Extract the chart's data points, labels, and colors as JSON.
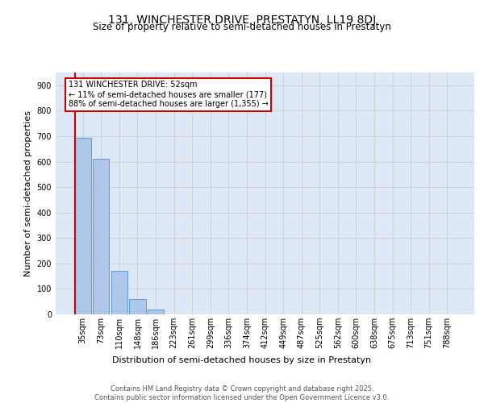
{
  "title_line1": "131, WINCHESTER DRIVE, PRESTATYN, LL19 8DJ",
  "title_line2": "Size of property relative to semi-detached houses in Prestatyn",
  "xlabel": "Distribution of semi-detached houses by size in Prestatyn",
  "ylabel": "Number of semi-detached properties",
  "categories": [
    "35sqm",
    "73sqm",
    "110sqm",
    "148sqm",
    "186sqm",
    "223sqm",
    "261sqm",
    "299sqm",
    "336sqm",
    "374sqm",
    "412sqm",
    "449sqm",
    "487sqm",
    "525sqm",
    "562sqm",
    "600sqm",
    "638sqm",
    "675sqm",
    "713sqm",
    "751sqm",
    "788sqm"
  ],
  "values": [
    693,
    611,
    170,
    60,
    18,
    0,
    0,
    0,
    0,
    0,
    0,
    0,
    0,
    0,
    0,
    0,
    0,
    0,
    0,
    0,
    0
  ],
  "bar_color": "#aec6e8",
  "bar_edge_color": "#5b9bd5",
  "annotation_text": "131 WINCHESTER DRIVE: 52sqm\n← 11% of semi-detached houses are smaller (177)\n88% of semi-detached houses are larger (1,355) →",
  "annotation_box_color": "#ffffff",
  "annotation_box_edge": "#cc0000",
  "ylim": [
    0,
    950
  ],
  "yticks": [
    0,
    100,
    200,
    300,
    400,
    500,
    600,
    700,
    800,
    900
  ],
  "grid_color": "#cccccc",
  "background_color": "#dce8f5",
  "footer_text": "Contains HM Land Registry data © Crown copyright and database right 2025.\nContains public sector information licensed under the Open Government Licence v3.0.",
  "red_line_color": "#cc0000",
  "title_fontsize": 10,
  "subtitle_fontsize": 8.5,
  "axis_label_fontsize": 8,
  "tick_fontsize": 7,
  "annotation_fontsize": 7,
  "footer_fontsize": 6
}
